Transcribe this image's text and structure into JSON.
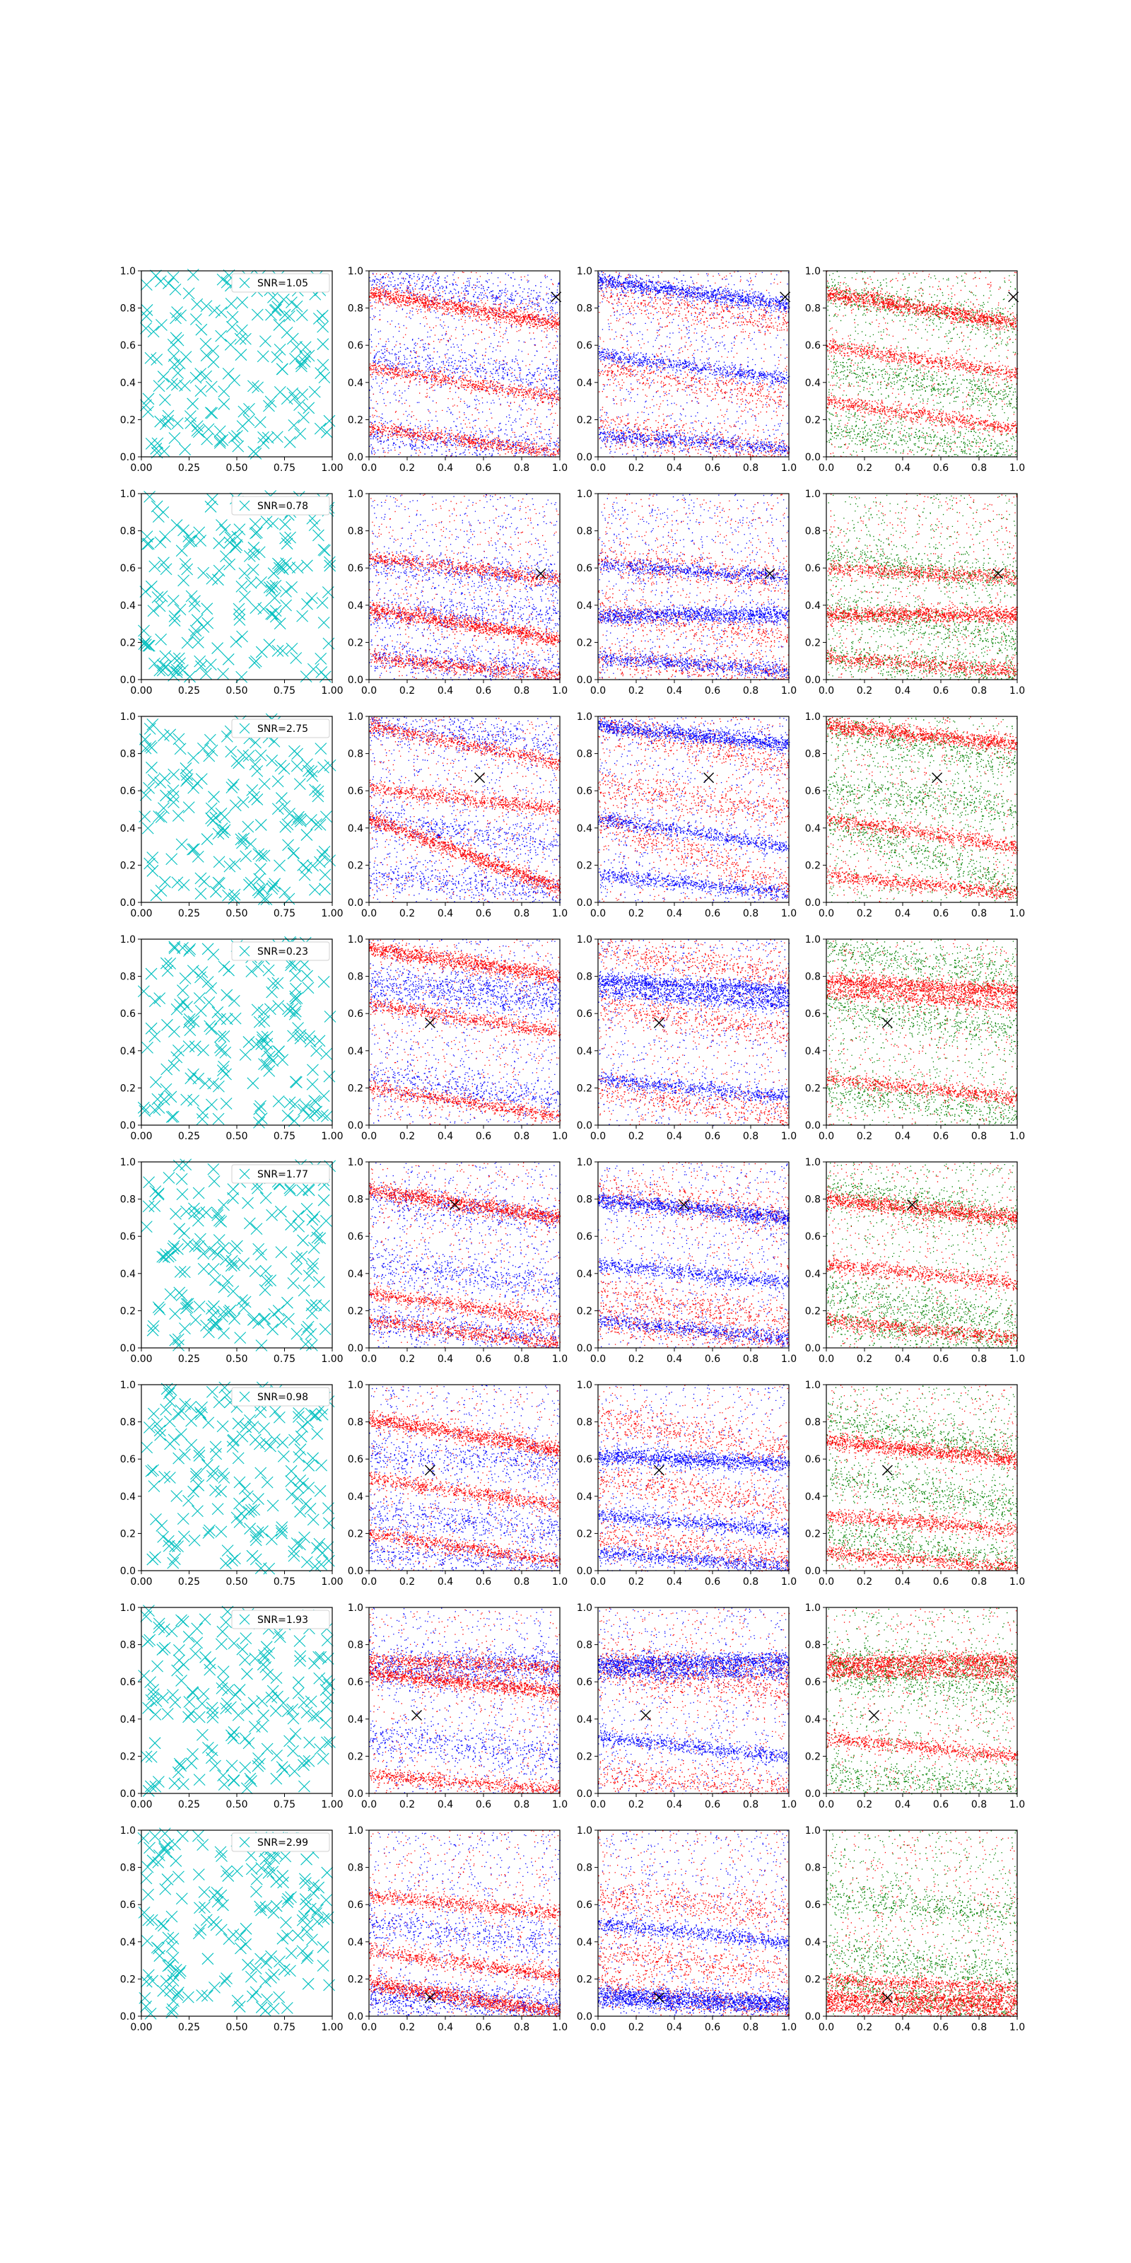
{
  "figure": {
    "rows": 8,
    "cols": 4,
    "x_ticks": [
      "0.00",
      "0.25",
      "0.50",
      "0.75",
      "1.00"
    ],
    "x_ticks_scatter": [
      "0.0",
      "0.2",
      "0.4",
      "0.6",
      "0.8",
      "1.0"
    ],
    "y_ticks": [
      "0.0",
      "0.2",
      "0.4",
      "0.6",
      "0.8",
      "1.0"
    ]
  },
  "colors": {
    "cyan": "#00bfbf",
    "red": "#ff0000",
    "blue": "#0000ff",
    "green": "#008000",
    "marker": "#000000"
  },
  "chart_data": [
    {
      "row": 0,
      "type": "scatter",
      "legend": "SNR=1.05",
      "xlim": [
        0,
        1
      ],
      "ylim": [
        0,
        1
      ],
      "marker_x": [
        0.98,
        0.98,
        0.98
      ],
      "bands": [
        [
          0.88,
          0.72
        ],
        [
          0.48,
          0.32
        ],
        [
          0.16,
          0.02
        ]
      ],
      "blue_bands": [
        [
          0.95,
          0.82
        ],
        [
          0.55,
          0.42
        ],
        [
          0.12,
          0.05
        ]
      ],
      "green_bands": [
        [
          0.88,
          0.72
        ],
        [
          0.6,
          0.45
        ],
        [
          0.3,
          0.15
        ]
      ]
    },
    {
      "row": 1,
      "type": "scatter",
      "legend": "SNR=0.78",
      "xlim": [
        0,
        1
      ],
      "ylim": [
        0,
        1
      ],
      "marker_x": [
        0.9,
        0.9,
        0.9
      ],
      "marker_y": 0.57,
      "bands": [
        [
          0.38,
          0.22
        ],
        [
          0.12,
          0.02
        ],
        [
          0.66,
          0.54
        ]
      ],
      "blue_bands": [
        [
          0.35,
          0.35
        ],
        [
          0.12,
          0.05
        ],
        [
          0.62,
          0.55
        ]
      ],
      "green_bands": [
        [
          0.35,
          0.35
        ],
        [
          0.12,
          0.05
        ],
        [
          0.6,
          0.55
        ]
      ]
    },
    {
      "row": 2,
      "type": "scatter",
      "legend": "SNR=2.75",
      "xlim": [
        0,
        1
      ],
      "ylim": [
        0,
        1
      ],
      "marker_x": [
        0.58,
        0.58,
        0.58
      ],
      "marker_y": 0.67,
      "bands": [
        [
          0.45,
          0.08
        ],
        [
          0.95,
          0.75
        ],
        [
          0.62,
          0.5
        ]
      ],
      "blue_bands": [
        [
          0.95,
          0.85
        ],
        [
          0.45,
          0.3
        ],
        [
          0.15,
          0.05
        ]
      ],
      "green_bands": [
        [
          0.95,
          0.85
        ],
        [
          0.45,
          0.3
        ],
        [
          0.15,
          0.05
        ]
      ]
    },
    {
      "row": 3,
      "type": "scatter",
      "legend": "SNR=0.23",
      "xlim": [
        0,
        1
      ],
      "ylim": [
        0,
        1
      ],
      "marker_x": [
        0.32,
        0.32,
        0.32
      ],
      "marker_y": 0.55,
      "bands": [
        [
          0.95,
          0.8
        ],
        [
          0.65,
          0.5
        ],
        [
          0.2,
          0.05
        ]
      ],
      "blue_bands": [
        [
          0.78,
          0.72
        ],
        [
          0.72,
          0.65
        ],
        [
          0.25,
          0.15
        ]
      ],
      "green_bands": [
        [
          0.78,
          0.72
        ],
        [
          0.72,
          0.65
        ],
        [
          0.25,
          0.15
        ]
      ]
    },
    {
      "row": 4,
      "type": "scatter",
      "legend": "SNR=1.77",
      "xlim": [
        0,
        1
      ],
      "ylim": [
        0,
        1
      ],
      "marker_x": [
        0.45,
        0.45,
        0.45
      ],
      "marker_y": 0.77,
      "bands": [
        [
          0.85,
          0.7
        ],
        [
          0.3,
          0.15
        ],
        [
          0.15,
          0.02
        ]
      ],
      "blue_bands": [
        [
          0.8,
          0.7
        ],
        [
          0.45,
          0.35
        ],
        [
          0.15,
          0.05
        ]
      ],
      "green_bands": [
        [
          0.8,
          0.7
        ],
        [
          0.45,
          0.35
        ],
        [
          0.15,
          0.05
        ]
      ]
    },
    {
      "row": 5,
      "type": "scatter",
      "legend": "SNR=0.98",
      "xlim": [
        0,
        1
      ],
      "ylim": [
        0,
        1
      ],
      "marker_x": [
        0.32,
        0.32,
        0.32
      ],
      "marker_y": 0.54,
      "bands": [
        [
          0.82,
          0.65
        ],
        [
          0.5,
          0.35
        ],
        [
          0.2,
          0.05
        ]
      ],
      "blue_bands": [
        [
          0.62,
          0.58
        ],
        [
          0.3,
          0.22
        ],
        [
          0.1,
          0.02
        ]
      ],
      "green_bands": [
        [
          0.7,
          0.6
        ],
        [
          0.3,
          0.22
        ],
        [
          0.1,
          0.02
        ]
      ]
    },
    {
      "row": 6,
      "type": "scatter",
      "legend": "SNR=1.93",
      "xlim": [
        0,
        1
      ],
      "ylim": [
        0,
        1
      ],
      "marker_x": [
        0.25,
        0.25,
        0.25
      ],
      "marker_y": 0.42,
      "bands": [
        [
          0.65,
          0.55
        ],
        [
          0.72,
          0.68
        ],
        [
          0.1,
          0.02
        ]
      ],
      "blue_bands": [
        [
          0.7,
          0.72
        ],
        [
          0.65,
          0.65
        ],
        [
          0.3,
          0.2
        ]
      ],
      "green_bands": [
        [
          0.7,
          0.72
        ],
        [
          0.65,
          0.65
        ],
        [
          0.3,
          0.2
        ]
      ]
    },
    {
      "row": 7,
      "type": "scatter",
      "legend": "SNR=2.99",
      "xlim": [
        0,
        1
      ],
      "ylim": [
        0,
        1
      ],
      "marker_x": [
        0.32,
        0.32,
        0.32
      ],
      "marker_y": 0.1,
      "bands": [
        [
          0.18,
          0.02
        ],
        [
          0.35,
          0.22
        ],
        [
          0.65,
          0.55
        ]
      ],
      "blue_bands": [
        [
          0.12,
          0.08
        ],
        [
          0.08,
          0.05
        ],
        [
          0.5,
          0.4
        ]
      ],
      "green_bands": [
        [
          0.1,
          0.08
        ],
        [
          0.05,
          0.02
        ],
        [
          0.2,
          0.15
        ]
      ]
    }
  ]
}
